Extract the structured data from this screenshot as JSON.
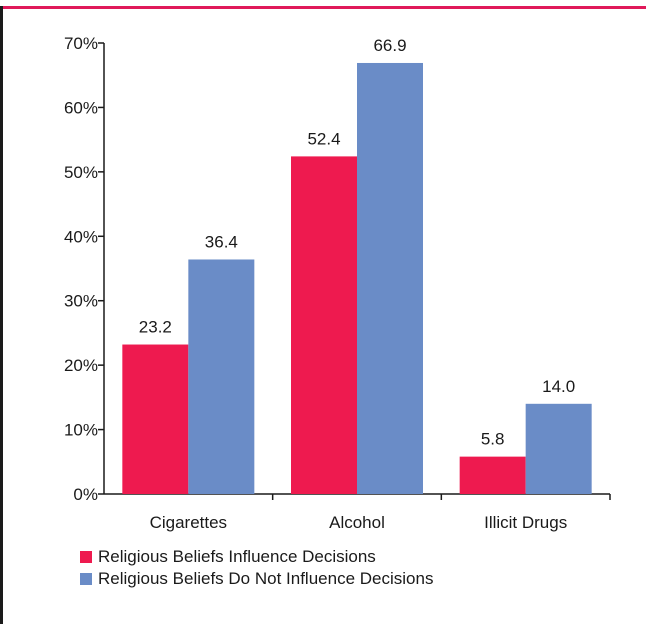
{
  "colors": {
    "accent_border": "#e0195a",
    "series_1": "#ee1a4f",
    "series_2": "#6a8cc7",
    "axis": "#1a1a1a"
  },
  "chart_data": {
    "type": "bar",
    "categories": [
      "Cigarettes",
      "Alcohol",
      "Illicit Drugs"
    ],
    "series": [
      {
        "name": "Religious Beliefs Influence Decisions",
        "values": [
          23.2,
          52.4,
          5.8
        ],
        "labels": [
          "23.2",
          "52.4",
          "5.8"
        ]
      },
      {
        "name": "Religious Beliefs Do Not Influence Decisions",
        "values": [
          36.4,
          66.9,
          14.0
        ],
        "labels": [
          "36.4",
          "66.9",
          "14.0"
        ]
      }
    ],
    "ylim": [
      0,
      70
    ],
    "yticks": [
      0,
      10,
      20,
      30,
      40,
      50,
      60,
      70
    ],
    "ytick_labels": [
      "0%",
      "10%",
      "20%",
      "30%",
      "40%",
      "50%",
      "60%",
      "70%"
    ],
    "title": "",
    "xlabel": "",
    "ylabel": "",
    "grid": false,
    "legend_position": "bottom-left"
  }
}
